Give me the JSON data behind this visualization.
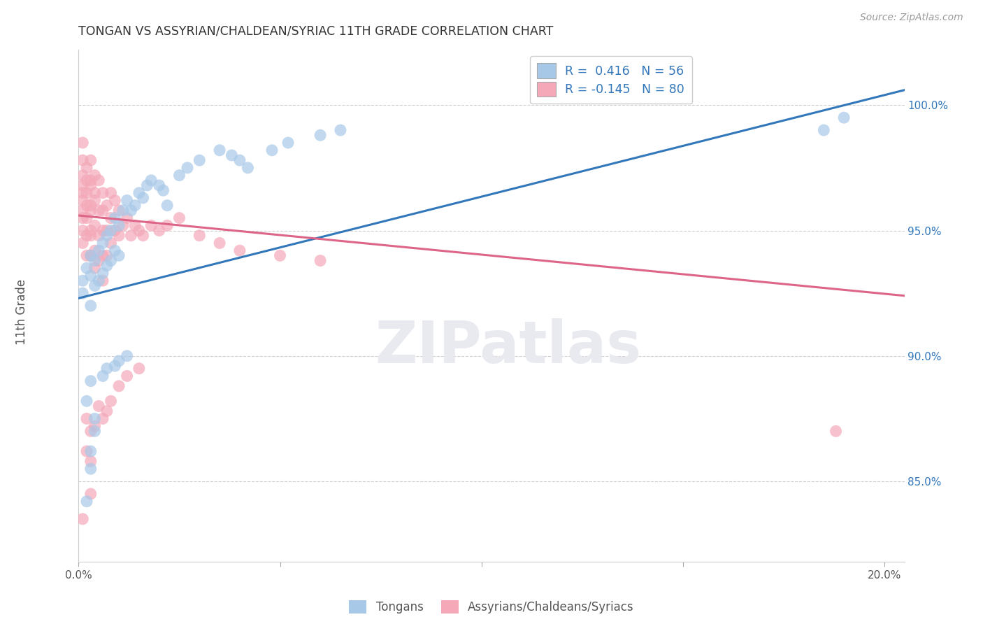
{
  "title": "TONGAN VS ASSYRIAN/CHALDEAN/SYRIAC 11TH GRADE CORRELATION CHART",
  "source": "Source: ZipAtlas.com",
  "ylabel": "11th Grade",
  "xmin": 0.0,
  "xmax": 0.205,
  "ymin": 0.818,
  "ymax": 1.022,
  "yticks": [
    0.85,
    0.9,
    0.95,
    1.0
  ],
  "ytick_labels": [
    "85.0%",
    "90.0%",
    "95.0%",
    "100.0%"
  ],
  "xticks": [
    0.0,
    0.05,
    0.1,
    0.15,
    0.2
  ],
  "xtick_labels": [
    "0.0%",
    "",
    "",
    "",
    "20.0%"
  ],
  "blue_R": 0.416,
  "blue_N": 56,
  "pink_R": -0.145,
  "pink_N": 80,
  "blue_color": "#a8c8e8",
  "pink_color": "#f4a8b8",
  "blue_line_color": "#3377bb",
  "pink_line_color": "#dd6688",
  "background_color": "#ffffff",
  "grid_color": "#d0d0d0",
  "legend_label_blue": "Tongans",
  "legend_label_pink": "Assyrians/Chaldeans/Syriacs",
  "blue_line_x0": 0.0,
  "blue_line_x1": 0.205,
  "blue_line_y0": 0.923,
  "blue_line_y1": 1.006,
  "pink_line_x0": 0.0,
  "pink_line_x1": 0.205,
  "pink_line_y0": 0.956,
  "pink_line_y1": 0.924,
  "blue_dots_x": [
    0.001,
    0.001,
    0.002,
    0.003,
    0.003,
    0.003,
    0.004,
    0.004,
    0.005,
    0.005,
    0.006,
    0.006,
    0.007,
    0.007,
    0.008,
    0.008,
    0.009,
    0.009,
    0.01,
    0.01,
    0.011,
    0.012,
    0.013,
    0.014,
    0.015,
    0.016,
    0.017,
    0.018,
    0.02,
    0.021,
    0.022,
    0.025,
    0.027,
    0.03,
    0.035,
    0.038,
    0.04,
    0.042,
    0.048,
    0.052,
    0.06,
    0.065,
    0.002,
    0.003,
    0.004,
    0.003,
    0.004,
    0.002,
    0.003,
    0.006,
    0.007,
    0.009,
    0.01,
    0.012,
    0.185,
    0.19
  ],
  "blue_dots_y": [
    0.93,
    0.925,
    0.935,
    0.94,
    0.932,
    0.92,
    0.938,
    0.928,
    0.942,
    0.93,
    0.945,
    0.933,
    0.948,
    0.936,
    0.95,
    0.938,
    0.955,
    0.942,
    0.952,
    0.94,
    0.958,
    0.962,
    0.958,
    0.96,
    0.965,
    0.963,
    0.968,
    0.97,
    0.968,
    0.966,
    0.96,
    0.972,
    0.975,
    0.978,
    0.982,
    0.98,
    0.978,
    0.975,
    0.982,
    0.985,
    0.988,
    0.99,
    0.842,
    0.855,
    0.87,
    0.862,
    0.875,
    0.882,
    0.89,
    0.892,
    0.895,
    0.896,
    0.898,
    0.9,
    0.99,
    0.995
  ],
  "pink_dots_x": [
    0.001,
    0.001,
    0.001,
    0.001,
    0.001,
    0.001,
    0.001,
    0.001,
    0.001,
    0.002,
    0.002,
    0.002,
    0.002,
    0.002,
    0.002,
    0.002,
    0.003,
    0.003,
    0.003,
    0.003,
    0.003,
    0.003,
    0.003,
    0.003,
    0.004,
    0.004,
    0.004,
    0.004,
    0.004,
    0.004,
    0.005,
    0.005,
    0.005,
    0.005,
    0.006,
    0.006,
    0.006,
    0.006,
    0.006,
    0.007,
    0.007,
    0.007,
    0.008,
    0.008,
    0.008,
    0.009,
    0.009,
    0.01,
    0.01,
    0.011,
    0.012,
    0.013,
    0.014,
    0.015,
    0.016,
    0.018,
    0.02,
    0.022,
    0.025,
    0.03,
    0.035,
    0.04,
    0.05,
    0.06,
    0.001,
    0.002,
    0.002,
    0.003,
    0.003,
    0.003,
    0.004,
    0.005,
    0.006,
    0.007,
    0.008,
    0.01,
    0.012,
    0.015,
    0.188,
    0.001
  ],
  "pink_dots_y": [
    0.978,
    0.968,
    0.958,
    0.972,
    0.962,
    0.95,
    0.965,
    0.955,
    0.945,
    0.975,
    0.965,
    0.955,
    0.97,
    0.96,
    0.948,
    0.94,
    0.978,
    0.968,
    0.958,
    0.948,
    0.97,
    0.96,
    0.94,
    0.95,
    0.972,
    0.962,
    0.952,
    0.965,
    0.942,
    0.935,
    0.97,
    0.958,
    0.948,
    0.938,
    0.965,
    0.958,
    0.95,
    0.94,
    0.93,
    0.96,
    0.95,
    0.94,
    0.965,
    0.955,
    0.945,
    0.962,
    0.95,
    0.958,
    0.948,
    0.952,
    0.955,
    0.948,
    0.952,
    0.95,
    0.948,
    0.952,
    0.95,
    0.952,
    0.955,
    0.948,
    0.945,
    0.942,
    0.94,
    0.938,
    0.835,
    0.862,
    0.875,
    0.87,
    0.858,
    0.845,
    0.872,
    0.88,
    0.875,
    0.878,
    0.882,
    0.888,
    0.892,
    0.895,
    0.87,
    0.985
  ]
}
